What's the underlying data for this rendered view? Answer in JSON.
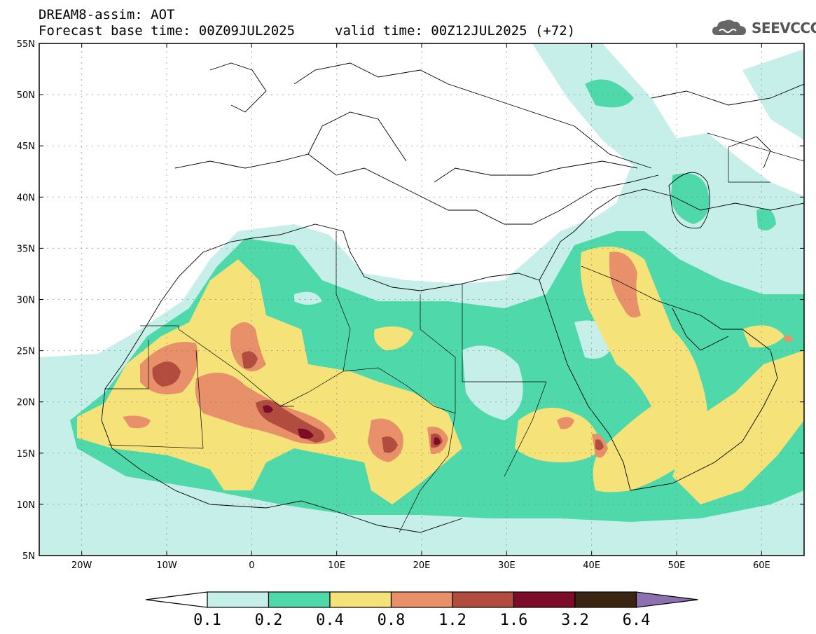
{
  "header": {
    "line1": "DREAM8-assim: AOT",
    "base_time": "Forecast base time: 00Z09JUL2025",
    "valid_time": "valid time: 00Z12JUL2025 (+72)"
  },
  "logo": {
    "text": "SEEVCCC",
    "icon": "cloud-icon"
  },
  "map": {
    "lat_labels": [
      "55N",
      "50N",
      "45N",
      "40N",
      "35N",
      "30N",
      "25N",
      "20N",
      "15N",
      "10N",
      "5N"
    ],
    "lon_labels": [
      "20W",
      "10W",
      "0",
      "10E",
      "20E",
      "30E",
      "40E",
      "50E",
      "60E"
    ]
  },
  "colorbar": {
    "labels": [
      "0.1",
      "0.2",
      "0.4",
      "0.8",
      "1.2",
      "1.6",
      "3.2",
      "6.4"
    ],
    "colors": [
      "#ffffff",
      "#c5efe8",
      "#4fd9aa",
      "#f5e37a",
      "#e8906a",
      "#b24c3e",
      "#7d0b2a",
      "#3a2512",
      "#8d70b0"
    ]
  }
}
